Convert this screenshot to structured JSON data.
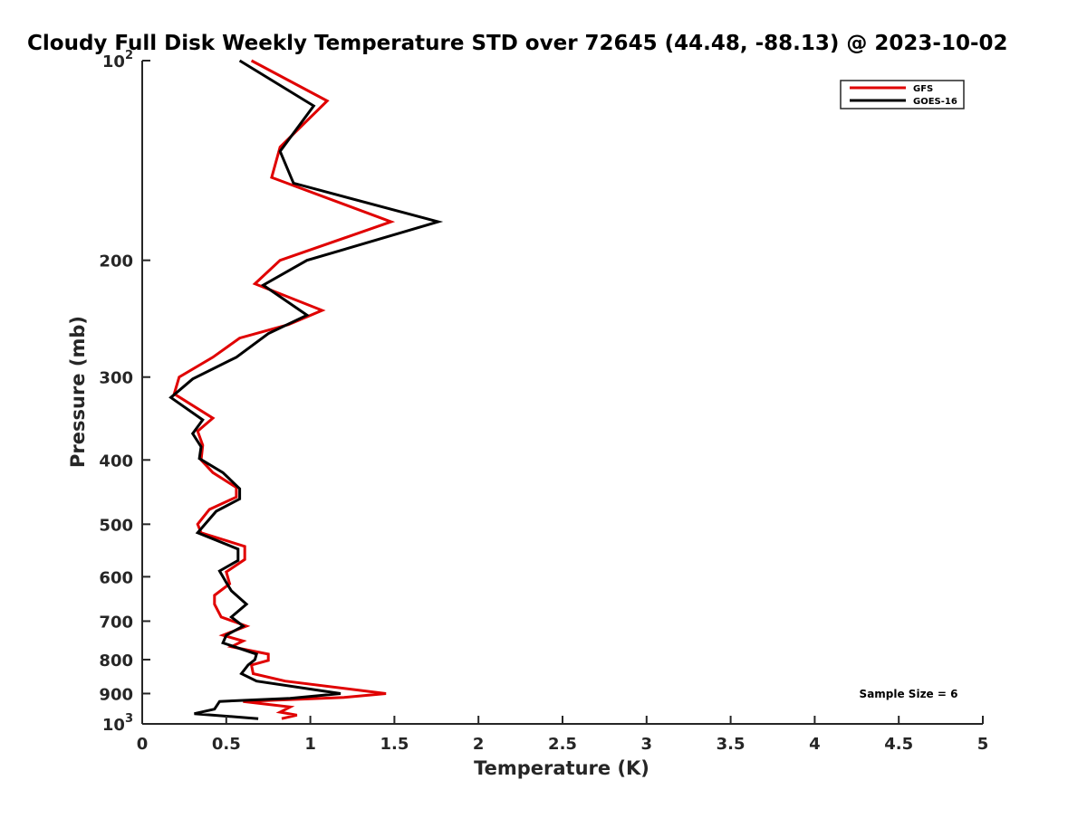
{
  "chart_data": {
    "type": "line",
    "title": "Cloudy Full Disk Weekly Temperature STD over 72645 (44.48, -88.13) @ 2023-10-02",
    "xlabel": "Temperature (K)",
    "ylabel": "Pressure (mb)",
    "xlim": [
      0,
      5
    ],
    "ylim": [
      100,
      1000
    ],
    "y_scale": "log",
    "y_reversed": true,
    "grid": false,
    "legend_position": "top-right",
    "x_ticks": [
      {
        "value": 0,
        "label": "0"
      },
      {
        "value": 0.5,
        "label": "0.5"
      },
      {
        "value": 1,
        "label": "1"
      },
      {
        "value": 1.5,
        "label": "1.5"
      },
      {
        "value": 2,
        "label": "2"
      },
      {
        "value": 2.5,
        "label": "2.5"
      },
      {
        "value": 3,
        "label": "3"
      },
      {
        "value": 3.5,
        "label": "3.5"
      },
      {
        "value": 4,
        "label": "4"
      },
      {
        "value": 4.5,
        "label": "4.5"
      },
      {
        "value": 5,
        "label": "5"
      }
    ],
    "y_ticks": [
      {
        "value": 100,
        "label": "10",
        "sup": "2"
      },
      {
        "value": 200,
        "label": "200"
      },
      {
        "value": 300,
        "label": "300"
      },
      {
        "value": 400,
        "label": "400"
      },
      {
        "value": 500,
        "label": "500"
      },
      {
        "value": 600,
        "label": "600"
      },
      {
        "value": 700,
        "label": "700"
      },
      {
        "value": 800,
        "label": "800"
      },
      {
        "value": 900,
        "label": "900"
      },
      {
        "value": 1000,
        "label": "10",
        "sup": "3"
      }
    ],
    "series": [
      {
        "name": "GFS",
        "color": "#e00000",
        "points": [
          {
            "x": 0.65,
            "y": 100
          },
          {
            "x": 1.1,
            "y": 115
          },
          {
            "x": 0.82,
            "y": 135
          },
          {
            "x": 0.77,
            "y": 150
          },
          {
            "x": 1.48,
            "y": 175
          },
          {
            "x": 0.82,
            "y": 200
          },
          {
            "x": 0.67,
            "y": 217
          },
          {
            "x": 1.07,
            "y": 238
          },
          {
            "x": 0.87,
            "y": 250
          },
          {
            "x": 0.58,
            "y": 262
          },
          {
            "x": 0.42,
            "y": 280
          },
          {
            "x": 0.22,
            "y": 300
          },
          {
            "x": 0.19,
            "y": 318
          },
          {
            "x": 0.42,
            "y": 346
          },
          {
            "x": 0.33,
            "y": 362
          },
          {
            "x": 0.36,
            "y": 380
          },
          {
            "x": 0.35,
            "y": 400
          },
          {
            "x": 0.42,
            "y": 418
          },
          {
            "x": 0.56,
            "y": 440
          },
          {
            "x": 0.56,
            "y": 455
          },
          {
            "x": 0.4,
            "y": 475
          },
          {
            "x": 0.33,
            "y": 500
          },
          {
            "x": 0.35,
            "y": 515
          },
          {
            "x": 0.61,
            "y": 540
          },
          {
            "x": 0.61,
            "y": 565
          },
          {
            "x": 0.5,
            "y": 590
          },
          {
            "x": 0.52,
            "y": 615
          },
          {
            "x": 0.43,
            "y": 640
          },
          {
            "x": 0.43,
            "y": 660
          },
          {
            "x": 0.47,
            "y": 690
          },
          {
            "x": 0.62,
            "y": 712
          },
          {
            "x": 0.48,
            "y": 735
          },
          {
            "x": 0.6,
            "y": 750
          },
          {
            "x": 0.53,
            "y": 765
          },
          {
            "x": 0.75,
            "y": 785
          },
          {
            "x": 0.75,
            "y": 802
          },
          {
            "x": 0.65,
            "y": 815
          },
          {
            "x": 0.66,
            "y": 840
          },
          {
            "x": 0.85,
            "y": 862
          },
          {
            "x": 1.45,
            "y": 900
          },
          {
            "x": 1.2,
            "y": 912
          },
          {
            "x": 0.6,
            "y": 925
          },
          {
            "x": 0.88,
            "y": 943
          },
          {
            "x": 0.82,
            "y": 960
          },
          {
            "x": 0.92,
            "y": 970
          },
          {
            "x": 0.83,
            "y": 982
          }
        ]
      },
      {
        "name": "GOES-16",
        "color": "#000000",
        "points": [
          {
            "x": 0.58,
            "y": 100
          },
          {
            "x": 1.02,
            "y": 117
          },
          {
            "x": 0.82,
            "y": 137
          },
          {
            "x": 0.9,
            "y": 153
          },
          {
            "x": 1.76,
            "y": 175
          },
          {
            "x": 0.98,
            "y": 200
          },
          {
            "x": 0.72,
            "y": 218
          },
          {
            "x": 0.98,
            "y": 242
          },
          {
            "x": 0.75,
            "y": 258
          },
          {
            "x": 0.56,
            "y": 280
          },
          {
            "x": 0.3,
            "y": 302
          },
          {
            "x": 0.17,
            "y": 322
          },
          {
            "x": 0.36,
            "y": 348
          },
          {
            "x": 0.3,
            "y": 365
          },
          {
            "x": 0.35,
            "y": 382
          },
          {
            "x": 0.34,
            "y": 398
          },
          {
            "x": 0.48,
            "y": 418
          },
          {
            "x": 0.58,
            "y": 442
          },
          {
            "x": 0.58,
            "y": 458
          },
          {
            "x": 0.44,
            "y": 478
          },
          {
            "x": 0.33,
            "y": 515
          },
          {
            "x": 0.57,
            "y": 545
          },
          {
            "x": 0.57,
            "y": 567
          },
          {
            "x": 0.46,
            "y": 588
          },
          {
            "x": 0.5,
            "y": 612
          },
          {
            "x": 0.53,
            "y": 630
          },
          {
            "x": 0.62,
            "y": 660
          },
          {
            "x": 0.53,
            "y": 690
          },
          {
            "x": 0.6,
            "y": 712
          },
          {
            "x": 0.5,
            "y": 735
          },
          {
            "x": 0.48,
            "y": 755
          },
          {
            "x": 0.68,
            "y": 785
          },
          {
            "x": 0.67,
            "y": 800
          },
          {
            "x": 0.63,
            "y": 815
          },
          {
            "x": 0.59,
            "y": 840
          },
          {
            "x": 0.68,
            "y": 862
          },
          {
            "x": 1.18,
            "y": 900
          },
          {
            "x": 0.88,
            "y": 915
          },
          {
            "x": 0.46,
            "y": 925
          },
          {
            "x": 0.43,
            "y": 950
          },
          {
            "x": 0.31,
            "y": 965
          },
          {
            "x": 0.69,
            "y": 982
          }
        ]
      }
    ],
    "annotations": [
      {
        "text": "Sample Size = 6",
        "position": "bottom-right"
      }
    ]
  }
}
